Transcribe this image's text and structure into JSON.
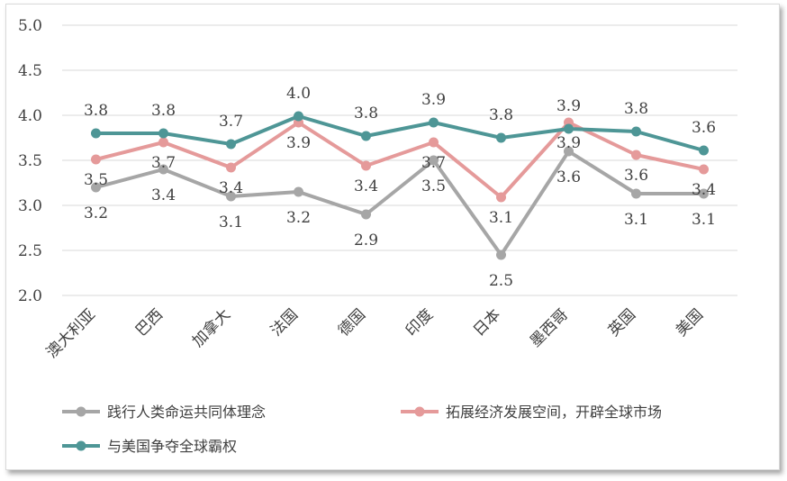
{
  "chart_data": {
    "type": "line",
    "categories": [
      "澳大利亚",
      "巴西",
      "加拿大",
      "法国",
      "德国",
      "印度",
      "日本",
      "墨西哥",
      "英国",
      "美国"
    ],
    "ylim": [
      2.0,
      5.0
    ],
    "yticks": [
      "2.0",
      "2.5",
      "3.0",
      "3.5",
      "4.0",
      "4.5",
      "5.0"
    ],
    "grid": true,
    "legend_position": "bottom",
    "series": [
      {
        "name": "践行人类命运共同体理念",
        "color": "#a6a6a6",
        "values": [
          3.2,
          3.4,
          3.1,
          3.15,
          2.9,
          3.5,
          2.45,
          3.6,
          3.13,
          3.13
        ],
        "labels": [
          "3.2",
          "3.4",
          "3.1",
          "3.2",
          "2.9",
          "3.5",
          "2.5",
          "3.6",
          "3.1",
          "3.1"
        ]
      },
      {
        "name": "拓展经济发展空间，开辟全球市场",
        "color": "#e59a9a",
        "values": [
          3.51,
          3.7,
          3.42,
          3.92,
          3.44,
          3.7,
          3.09,
          3.92,
          3.56,
          3.4
        ],
        "labels": [
          "3.5",
          "3.7",
          "3.4",
          "3.9",
          "3.4",
          "3.7",
          "3.1",
          "3.9",
          "3.6",
          "3.4"
        ]
      },
      {
        "name": "与美国争夺全球霸权",
        "color": "#4e9696",
        "values": [
          3.8,
          3.8,
          3.68,
          3.99,
          3.77,
          3.92,
          3.75,
          3.85,
          3.82,
          3.61
        ],
        "labels": [
          "3.8",
          "3.8",
          "3.7",
          "4.0",
          "3.8",
          "3.9",
          "3.8",
          "3.9",
          "3.8",
          "3.6"
        ]
      }
    ]
  }
}
